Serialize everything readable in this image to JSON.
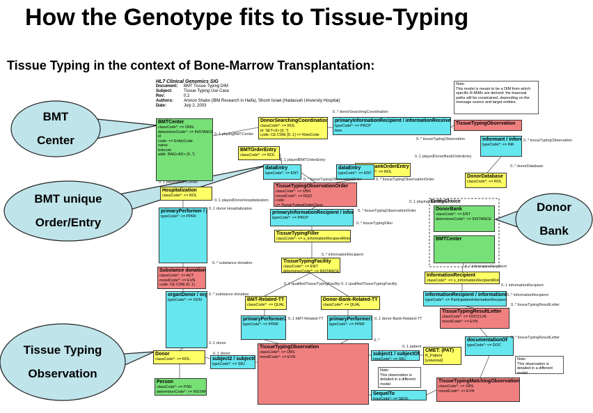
{
  "header": {
    "title": "How the Genotype fits to Tissue-Typing",
    "subtitle": "Tissue Typing in the context of Bone-Marrow Transplantation:",
    "org": "HL7 Clinical Genomics SIG",
    "fields": [
      [
        "Document:",
        "BMT Tissue-Typing DIM"
      ],
      [
        "Subject:",
        "Tissue-Typing Use Case"
      ],
      [
        "Rev:",
        "0.2"
      ],
      [
        "Authors:",
        "Amnon Shabo (IBM Research in Haifa), Shosh Israel (Hadassah University Hospital)"
      ],
      [
        "Date:",
        "July 2, 2003"
      ]
    ]
  },
  "top_note": "Note:\nThis model is meant to be a DIM from which specific R-MIMs are derived: the traversal paths will be constrained, depending on the message source and target entities.",
  "callouts": [
    "BMT\nCenter",
    "BMT unique\nOrder/Entry",
    "Donor\nBank",
    "Tissue Typing\nObservation"
  ],
  "boxes": [
    {
      "name": "BMTCenter",
      "attrs": [
        "classCode*: <= ORG",
        "determinerCode*: <= INSTANCE",
        "id",
        "code: <= EntityCode",
        "name",
        "telecom",
        "addr: BAG<AD> [0..*]"
      ]
    },
    {
      "name": "DonorSearchingCoordination",
      "attrs": [
        "classCode*: <= ROL",
        "id: SET<II> [0..*]",
        "code: CE CWE [0..1] <= RoleCode"
      ]
    },
    {
      "name": "primaryInformationRecipient / informationReceived",
      "attrs": [
        "typeCode*: <= PRCP",
        "time"
      ]
    },
    {
      "name": "TissueTypingObservation",
      "attrs": []
    },
    {
      "name": "informant / informationGiven",
      "attrs": [
        "typeCode*: <= INF"
      ]
    },
    {
      "name": "BMTOrderEntry",
      "attrs": [
        "classCode*: <= ROL"
      ]
    },
    {
      "name": "DonorBankOrderEntry",
      "attrs": [
        "classCode*: <= ROL"
      ]
    },
    {
      "name": "dataEntry",
      "attrs": [
        "typeCode*: <= ENT"
      ]
    },
    {
      "name": "dataEntry",
      "attrs": [
        "typeCode*: <= ENT"
      ]
    },
    {
      "name": "DonorDatabase",
      "attrs": [
        "classCode*: <= ROL"
      ]
    },
    {
      "name": "TissueTypingObservationOrder",
      "attrs": [
        "classCode*: <= OBS",
        "moodCode*: <= RQO",
        "code:",
        "<= TissueTypingOrderClass"
      ]
    },
    {
      "name": "Hospitalization",
      "attrs": [
        "classCode*: <= ROL"
      ]
    },
    {
      "name": "primaryPerformer / performance",
      "attrs": [
        "typeCode*: <= PPRF"
      ]
    },
    {
      "name": "primaryInformationRecipient / informationReceived",
      "attrs": [
        "typeCode*: <= PRCP"
      ]
    },
    {
      "name": "EntityChoice",
      "attrs": []
    },
    {
      "name": "DonorBank",
      "attrs": [
        "classCode*: <= ENT",
        "determinerCode*: <= INSTANCE"
      ]
    },
    {
      "name": "BMTCenter",
      "attrs": []
    },
    {
      "name": "TissueTypingFiller",
      "attrs": [
        "classCode*: <= x_InformationRecipientRole"
      ]
    },
    {
      "name": "TissueTypingFacility",
      "attrs": [
        "classCode*: <= ENT",
        "determinerCode*: <= INSTANCE"
      ]
    },
    {
      "name": "Substance donation",
      "attrs": [
        "classCode*: <= ACT",
        "moodCode*: <= EVN",
        "code: CE CWE [0..1]"
      ]
    },
    {
      "name": "InformationRecipient",
      "attrs": [
        "classCode*: <= x_InformationRecipientRole"
      ]
    },
    {
      "name": "informationRecipient / informationReceived",
      "attrs": [
        "typeCode*: <= ParticipationInformationRecipient"
      ]
    },
    {
      "name": "organDonor / organDonation",
      "attrs": [
        "typeCode*: <= DON"
      ]
    },
    {
      "name": "BMT-Related-TT",
      "attrs": [
        "classCode*: <= QUAL"
      ]
    },
    {
      "name": "Donor-Bank-Related-TT",
      "attrs": [
        "classCode*: <= QUAL"
      ]
    },
    {
      "name": "TissueTypingResultLetter",
      "attrs": [
        "classCode*: <= DOCCLIN",
        "moodCode*: <= EVN"
      ]
    },
    {
      "name": "primaryPerformer2 / performance",
      "attrs": [
        "typeCode*: <= PPRF"
      ]
    },
    {
      "name": "primaryPerformer1 / performance",
      "attrs": [
        "typeCode*: <= PPRF"
      ]
    },
    {
      "name": "documentationOf",
      "attrs": [
        "typeCode*: <= DOC"
      ]
    },
    {
      "name": "TissueTypingObservation",
      "attrs": [
        "classCode*: <= OBS",
        "moodCode*: <= EVN"
      ]
    },
    {
      "name": "Donor",
      "attrs": [
        "classCode*: <= ROL"
      ]
    },
    {
      "name": "subject2 / subjectOf",
      "attrs": [
        "typeCode*: <= SBJ"
      ]
    },
    {
      "name": "subject1 / subjectOf",
      "attrs": [
        "typeCode*: <= SBJ"
      ]
    },
    {
      "name": "CMET: (PAT)",
      "attrs": [
        "R_Patient",
        "[universal]"
      ]
    },
    {
      "name": "Person",
      "attrs": [
        "classCode*: <= PSN",
        "determinerCode*: <= INSTANCE"
      ]
    },
    {
      "name": "SequelTo",
      "attrs": [
        "typeCode*: <= SEQL"
      ]
    },
    {
      "name": "TissueTypingMatchingObservation",
      "attrs": [
        "classCode*: <= OBS",
        "moodCode*: <= EVN"
      ]
    }
  ],
  "notes": [
    "Note:\nThis observation is detailed in a different model",
    "Note:\nThis observation is detailed in a different model"
  ],
  "edge_labels": [
    "0..* donorSearchingCoordination",
    "0..1 playingBMTCenter",
    "0..1 playingBMTCenter",
    "0..1 playedBMTOrderEntry",
    "0..* tissueTypingObservation",
    "0..* tissueTypingObservation",
    "0..* donorDatabase",
    "0..1 playedDonorBankOrderEntry",
    "0..* tissueTypingObservationOrder",
    "0..* tissueTypingObservationOrder",
    "0..1 playedDonorHospitalization",
    "0..1 donor Hospitalization",
    "0..* tissueTypingObservationOrder",
    "0..* tissueTypingFiller",
    "0..1 playingDonorBank",
    "0..* informationRecipient",
    "0..* substance donation",
    "0..* informationRecipient",
    "0..1 qualifiedTissueTypingFacility",
    "0..1 qualifiedTissueTypingFacility",
    "0..1 informationRecipient",
    "0..* substance donation",
    "0..* informationRecipient",
    "0..* tissueTypingResultLetter",
    "0..1 bMT-Related-TT",
    "0..1 donor-Bank-Related-TT",
    "0..* tissueTypingResultLetter",
    "0..1 donor",
    "0..1 donor",
    "0..1 patient",
    "0..*"
  ]
}
